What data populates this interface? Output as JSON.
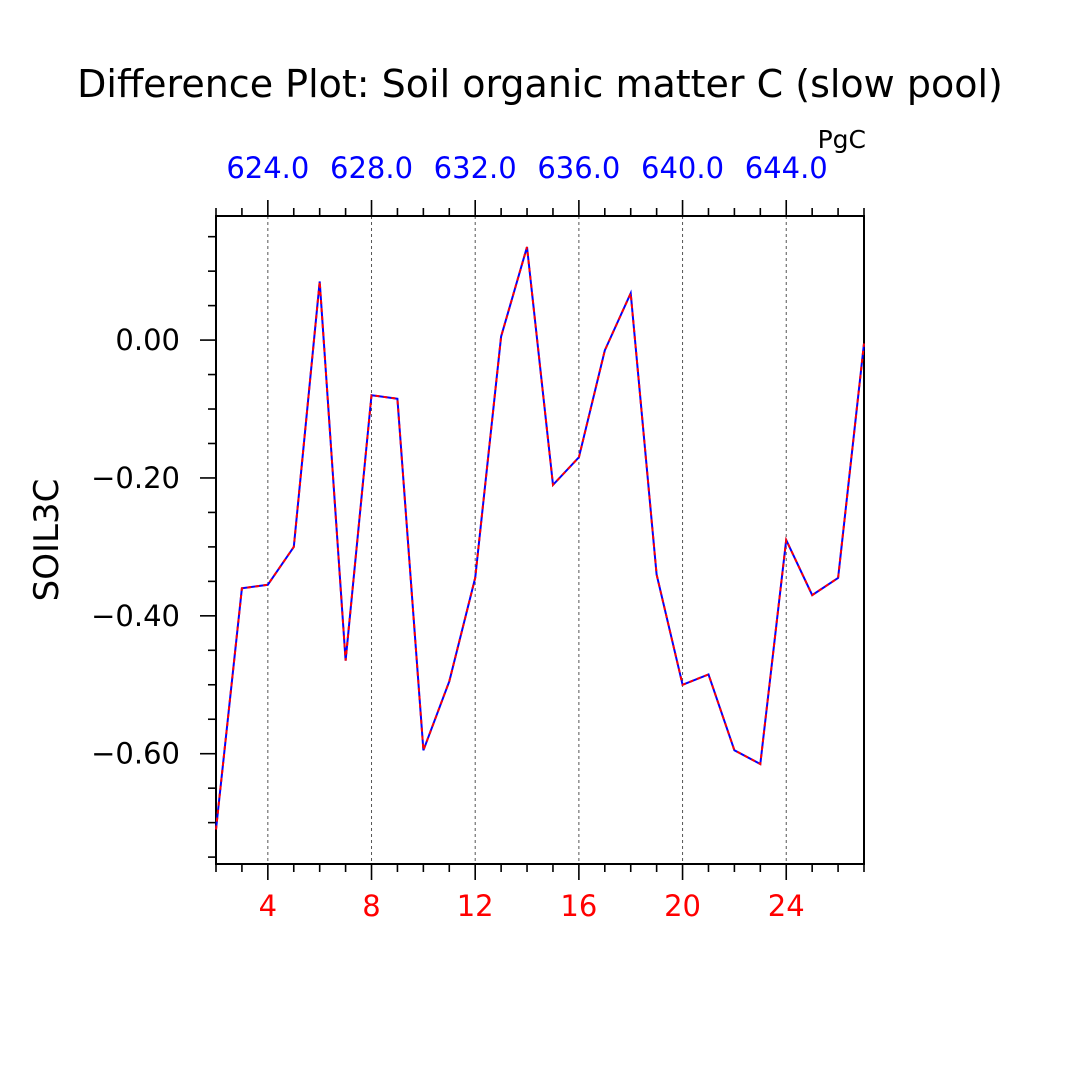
{
  "chart_data": {
    "type": "line",
    "title": "Difference Plot: Soil organic matter C (slow pool)",
    "ylabel": "SOIL3C",
    "top_axis_unit": "PgC",
    "xlim": [
      2,
      27
    ],
    "ylim": [
      -0.76,
      0.18
    ],
    "x_ticks": [
      4,
      8,
      12,
      16,
      20,
      24
    ],
    "x_tick_labels": [
      "4",
      "8",
      "12",
      "16",
      "20",
      "24"
    ],
    "y_ticks": [
      0,
      -0.2,
      -0.4,
      -0.6
    ],
    "y_tick_labels": [
      "0.00",
      "−0.20",
      "−0.40",
      "−0.60"
    ],
    "top_ticks": [
      4,
      8,
      12,
      16,
      20,
      24
    ],
    "top_tick_labels": [
      "624.0",
      "628.0",
      "632.0",
      "636.0",
      "640.0",
      "644.0"
    ],
    "grid_x": true,
    "colors": {
      "primary_line": "#0000ff",
      "secondary_line": "#ff0000",
      "bottom_tick_labels": "#ff0000",
      "top_tick_labels": "#0000ff",
      "axes": "#000000"
    },
    "x": [
      2,
      3,
      4,
      5,
      6,
      7,
      8,
      9,
      10,
      11,
      12,
      13,
      14,
      15,
      16,
      17,
      18,
      19,
      20,
      21,
      22,
      23,
      24,
      25,
      26,
      27
    ],
    "series": [
      {
        "values": [
          -0.71,
          -0.36,
          -0.355,
          -0.3,
          0.085,
          -0.465,
          -0.08,
          -0.085,
          -0.595,
          -0.495,
          -0.345,
          0.005,
          0.135,
          -0.21,
          -0.17,
          -0.015,
          0.068,
          -0.34,
          -0.5,
          -0.485,
          -0.595,
          -0.615,
          -0.29,
          -0.37,
          -0.345,
          -0.005
        ]
      },
      {
        "values": [
          -0.71,
          -0.36,
          -0.355,
          -0.3,
          0.085,
          -0.465,
          -0.08,
          -0.085,
          -0.595,
          -0.495,
          -0.345,
          0.005,
          0.135,
          -0.21,
          -0.17,
          -0.015,
          0.068,
          -0.34,
          -0.5,
          -0.485,
          -0.595,
          -0.615,
          -0.29,
          -0.37,
          -0.345,
          -0.005
        ]
      }
    ]
  }
}
